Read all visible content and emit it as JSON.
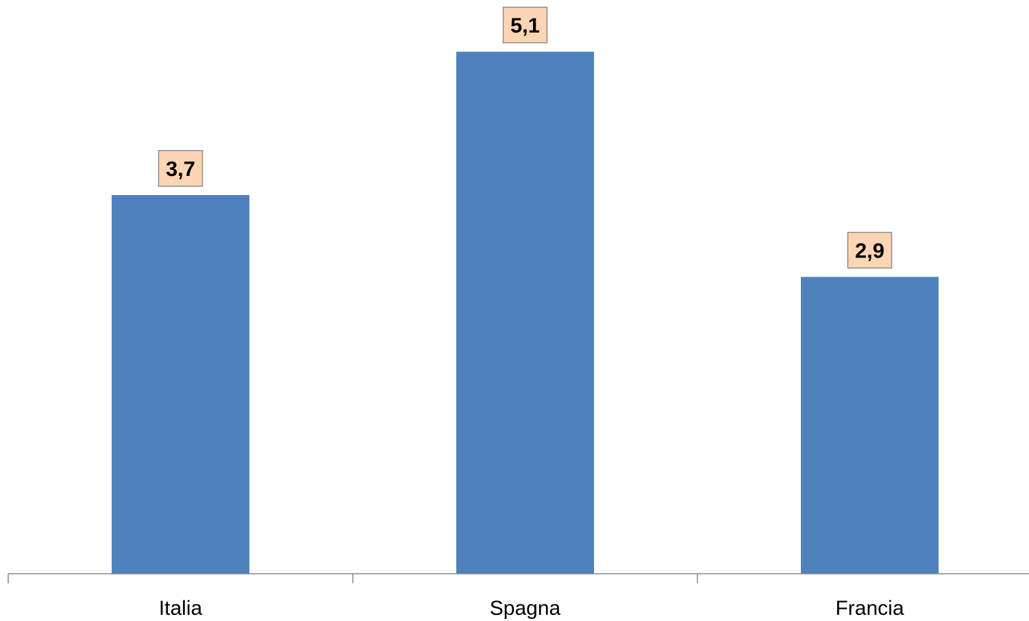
{
  "chart_data": {
    "type": "bar",
    "categories": [
      "Italia",
      "Spagna",
      "Francia"
    ],
    "values": [
      3.7,
      5.1,
      2.9
    ],
    "data_labels": [
      "3,7",
      "5,1",
      "2,9"
    ],
    "title": "",
    "xlabel": "",
    "ylabel": "",
    "ylim": [
      0,
      5.5
    ],
    "grid": false,
    "legend": "none",
    "colors": {
      "bar": "#4f81bd",
      "label_fill": "#fcd5b5",
      "label_border": "#8c8c8c",
      "axis": "#868686"
    }
  }
}
